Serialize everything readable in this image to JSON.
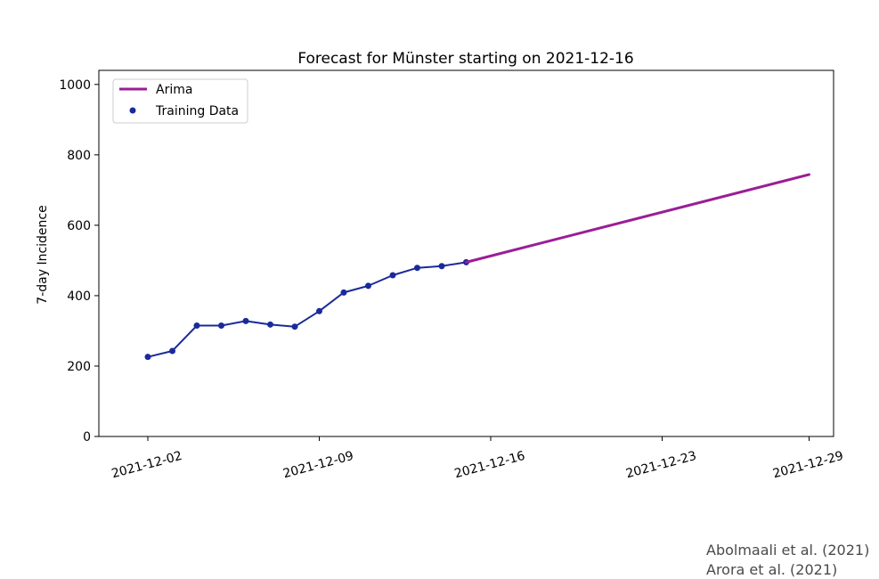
{
  "chart_data": {
    "type": "line",
    "title": "Forecast for Münster starting on 2021-12-16",
    "xlabel": "",
    "ylabel": "7-day Incidence",
    "x_type": "date",
    "xlim": [
      "2021-11-30",
      "2021-12-30"
    ],
    "ylim": [
      0,
      1040
    ],
    "yticks": [
      0,
      200,
      400,
      600,
      800,
      1000
    ],
    "xticks": [
      "2021-12-02",
      "2021-12-09",
      "2021-12-16",
      "2021-12-23",
      "2021-12-29"
    ],
    "grid": false,
    "legend_position": "top-left",
    "series": [
      {
        "name": "Training Data",
        "style": "line-with-markers",
        "color": "#1a2a9a",
        "x": [
          "2021-12-02",
          "2021-12-03",
          "2021-12-04",
          "2021-12-05",
          "2021-12-06",
          "2021-12-07",
          "2021-12-08",
          "2021-12-09",
          "2021-12-10",
          "2021-12-11",
          "2021-12-12",
          "2021-12-13",
          "2021-12-14",
          "2021-12-15"
        ],
        "values": [
          226,
          243,
          315,
          315,
          328,
          318,
          312,
          356,
          409,
          428,
          458,
          479,
          484,
          495
        ]
      },
      {
        "name": "Arima",
        "style": "line",
        "color": "#9b1d96",
        "x": [
          "2021-12-15",
          "2021-12-29"
        ],
        "values": [
          495,
          744
        ]
      }
    ]
  },
  "credits": [
    "Abolmaali et al. (2021)",
    "Arora et al. (2021)"
  ]
}
